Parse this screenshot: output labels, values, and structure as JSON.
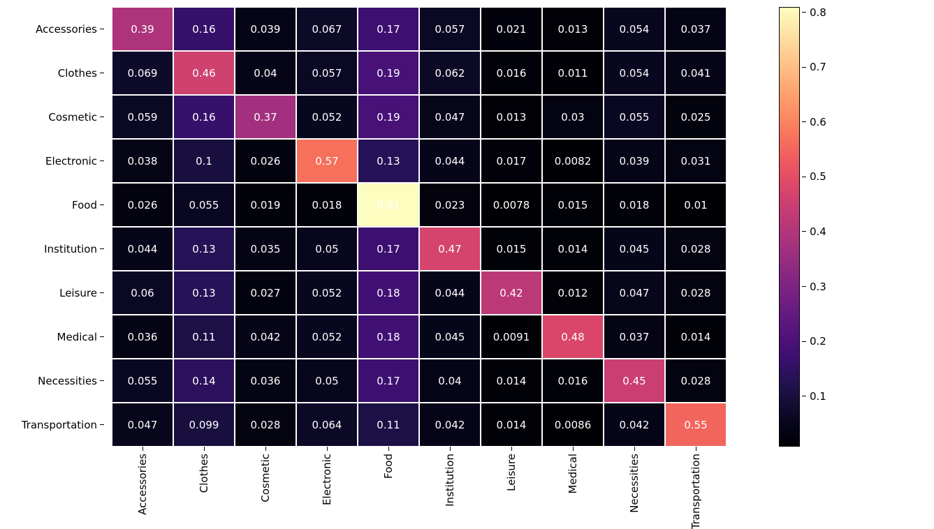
{
  "heatmap": {
    "type": "heatmap",
    "categories": [
      "Accessories",
      "Clothes",
      "Cosmetic",
      "Electronic",
      "Food",
      "Institution",
      "Leisure",
      "Medical",
      "Necessities",
      "Transportation"
    ],
    "rows": [
      [
        0.39,
        0.16,
        0.039,
        0.067,
        0.17,
        0.057,
        0.021,
        0.013,
        0.054,
        0.037
      ],
      [
        0.069,
        0.46,
        0.04,
        0.057,
        0.19,
        0.062,
        0.016,
        0.011,
        0.054,
        0.041
      ],
      [
        0.059,
        0.16,
        0.37,
        0.052,
        0.19,
        0.047,
        0.013,
        0.03,
        0.055,
        0.025
      ],
      [
        0.038,
        0.1,
        0.026,
        0.57,
        0.13,
        0.044,
        0.017,
        0.0082,
        0.039,
        0.031
      ],
      [
        0.026,
        0.055,
        0.019,
        0.018,
        0.81,
        0.023,
        0.0078,
        0.015,
        0.018,
        0.01
      ],
      [
        0.044,
        0.13,
        0.035,
        0.05,
        0.17,
        0.47,
        0.015,
        0.014,
        0.045,
        0.028
      ],
      [
        0.06,
        0.13,
        0.027,
        0.052,
        0.18,
        0.044,
        0.42,
        0.012,
        0.047,
        0.028
      ],
      [
        0.036,
        0.11,
        0.042,
        0.052,
        0.18,
        0.045,
        0.0091,
        0.48,
        0.037,
        0.014
      ],
      [
        0.055,
        0.14,
        0.036,
        0.05,
        0.17,
        0.04,
        0.014,
        0.016,
        0.45,
        0.028
      ],
      [
        0.047,
        0.099,
        0.028,
        0.064,
        0.11,
        0.042,
        0.014,
        0.0086,
        0.042,
        0.55
      ]
    ],
    "row_labels_display": [
      [
        "0.39",
        "0.16",
        "0.039",
        "0.067",
        "0.17",
        "0.057",
        "0.021",
        "0.013",
        "0.054",
        "0.037"
      ],
      [
        "0.069",
        "0.46",
        "0.04",
        "0.057",
        "0.19",
        "0.062",
        "0.016",
        "0.011",
        "0.054",
        "0.041"
      ],
      [
        "0.059",
        "0.16",
        "0.37",
        "0.052",
        "0.19",
        "0.047",
        "0.013",
        "0.03",
        "0.055",
        "0.025"
      ],
      [
        "0.038",
        "0.1",
        "0.026",
        "0.57",
        "0.13",
        "0.044",
        "0.017",
        "0.0082",
        "0.039",
        "0.031"
      ],
      [
        "0.026",
        "0.055",
        "0.019",
        "0.018",
        "0.81",
        "0.023",
        "0.0078",
        "0.015",
        "0.018",
        "0.01"
      ],
      [
        "0.044",
        "0.13",
        "0.035",
        "0.05",
        "0.17",
        "0.47",
        "0.015",
        "0.014",
        "0.045",
        "0.028"
      ],
      [
        "0.06",
        "0.13",
        "0.027",
        "0.052",
        "0.18",
        "0.044",
        "0.42",
        "0.012",
        "0.047",
        "0.028"
      ],
      [
        "0.036",
        "0.11",
        "0.042",
        "0.052",
        "0.18",
        "0.045",
        "0.0091",
        "0.48",
        "0.037",
        "0.014"
      ],
      [
        "0.055",
        "0.14",
        "0.036",
        "0.05",
        "0.17",
        "0.04",
        "0.014",
        "0.016",
        "0.45",
        "0.028"
      ],
      [
        "0.047",
        "0.099",
        "0.028",
        "0.064",
        "0.11",
        "0.042",
        "0.014",
        "0.0086",
        "0.042",
        "0.55"
      ]
    ],
    "vmin": 0.0078,
    "vmax": 0.81,
    "font_size": 15,
    "text_color": "#ffffff",
    "grid_color": "#ffffff",
    "background_color": "#ffffff",
    "colormap": {
      "name": "magma",
      "stops": [
        {
          "t": 0.0,
          "color": "#000004"
        },
        {
          "t": 0.05,
          "color": "#07061c"
        },
        {
          "t": 0.1,
          "color": "#140e36"
        },
        {
          "t": 0.15,
          "color": "#251255"
        },
        {
          "t": 0.2,
          "color": "#3b0f70"
        },
        {
          "t": 0.25,
          "color": "#51127c"
        },
        {
          "t": 0.3,
          "color": "#641a80"
        },
        {
          "t": 0.35,
          "color": "#782281"
        },
        {
          "t": 0.4,
          "color": "#8c2981"
        },
        {
          "t": 0.45,
          "color": "#a1307e"
        },
        {
          "t": 0.5,
          "color": "#b73779"
        },
        {
          "t": 0.55,
          "color": "#ca3e72"
        },
        {
          "t": 0.6,
          "color": "#de4968"
        },
        {
          "t": 0.65,
          "color": "#ed5a5f"
        },
        {
          "t": 0.7,
          "color": "#f7705c"
        },
        {
          "t": 0.75,
          "color": "#fc8961"
        },
        {
          "t": 0.8,
          "color": "#fe9f6d"
        },
        {
          "t": 0.85,
          "color": "#feb77e"
        },
        {
          "t": 0.9,
          "color": "#fecf92"
        },
        {
          "t": 0.95,
          "color": "#fde7a9"
        },
        {
          "t": 1.0,
          "color": "#fcfdbf"
        }
      ]
    },
    "colorbar_ticks": [
      0.1,
      0.2,
      0.3,
      0.4,
      0.5,
      0.6,
      0.7,
      0.8
    ],
    "colorbar_tick_labels": [
      "0.1",
      "0.2",
      "0.3",
      "0.4",
      "0.5",
      "0.6",
      "0.7",
      "0.8"
    ],
    "label_fontsize": 15,
    "tick_color": "#000000"
  }
}
